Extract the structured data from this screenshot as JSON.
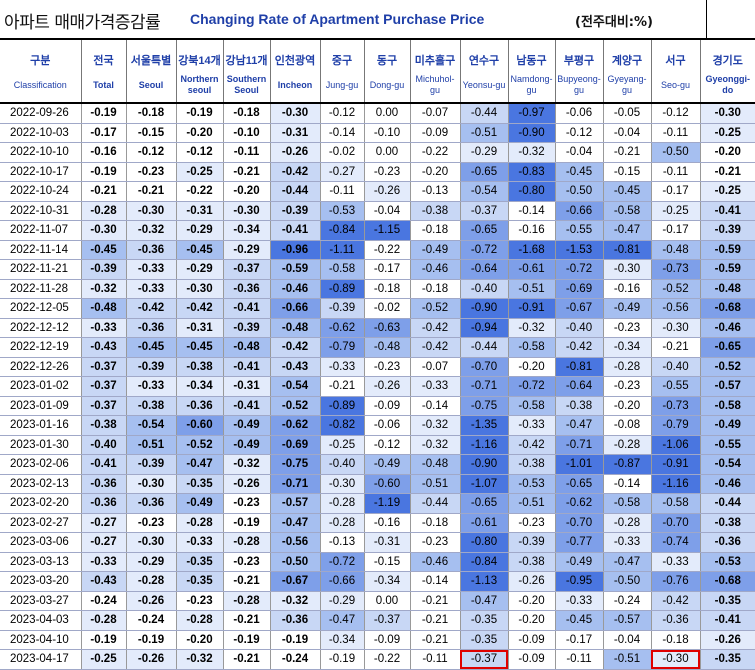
{
  "header": {
    "title_kr": "아파트 매매가격증감률",
    "title_en": "Changing Rate of Apartment Purchase Price",
    "unit": "(전주대비:%)"
  },
  "columns": [
    {
      "kr": "구분",
      "en": "Classification"
    },
    {
      "kr": "전국",
      "en": "Total"
    },
    {
      "kr": "서울특별",
      "en": "Seoul"
    },
    {
      "kr": "강북14개",
      "en": "Northern seoul"
    },
    {
      "kr": "강남11개",
      "en": "Southern Seoul"
    },
    {
      "kr": "인천광역",
      "en": "Incheon"
    },
    {
      "kr": "중구",
      "en": "Jung-gu"
    },
    {
      "kr": "동구",
      "en": "Dong-gu"
    },
    {
      "kr": "미추홀구",
      "en": "Michuhol-gu"
    },
    {
      "kr": "연수구",
      "en": "Yeonsu-gu"
    },
    {
      "kr": "남동구",
      "en": "Namdong-gu"
    },
    {
      "kr": "부평구",
      "en": "Bupyeong-gu"
    },
    {
      "kr": "계양구",
      "en": "Gyeyang-gu"
    },
    {
      "kr": "서구",
      "en": "Seo-gu"
    },
    {
      "kr": "경기도",
      "en": "Gyeonggi-do"
    }
  ],
  "rows": [
    {
      "date": "2022-09-26",
      "values": [
        "-0.19",
        "-0.18",
        "-0.19",
        "-0.18",
        "-0.30",
        "-0.12",
        "0.00",
        "-0.07",
        "-0.44",
        "-0.97",
        "-0.06",
        "-0.05",
        "-0.12",
        "-0.30"
      ]
    },
    {
      "date": "2022-10-03",
      "values": [
        "-0.17",
        "-0.15",
        "-0.20",
        "-0.10",
        "-0.31",
        "-0.14",
        "-0.10",
        "-0.09",
        "-0.51",
        "-0.90",
        "-0.12",
        "-0.04",
        "-0.11",
        "-0.25"
      ]
    },
    {
      "date": "2022-10-10",
      "values": [
        "-0.16",
        "-0.12",
        "-0.12",
        "-0.11",
        "-0.26",
        "-0.02",
        "0.00",
        "-0.22",
        "-0.29",
        "-0.32",
        "-0.04",
        "-0.21",
        "-0.50",
        "-0.20"
      ]
    },
    {
      "date": "2022-10-17",
      "values": [
        "-0.19",
        "-0.23",
        "-0.25",
        "-0.21",
        "-0.42",
        "-0.27",
        "-0.23",
        "-0.20",
        "-0.65",
        "-0.83",
        "-0.45",
        "-0.15",
        "-0.11",
        "-0.21"
      ]
    },
    {
      "date": "2022-10-24",
      "values": [
        "-0.21",
        "-0.21",
        "-0.22",
        "-0.20",
        "-0.44",
        "-0.11",
        "-0.26",
        "-0.13",
        "-0.54",
        "-0.80",
        "-0.50",
        "-0.45",
        "-0.17",
        "-0.25"
      ]
    },
    {
      "date": "2022-10-31",
      "values": [
        "-0.28",
        "-0.30",
        "-0.31",
        "-0.30",
        "-0.39",
        "-0.53",
        "-0.04",
        "-0.38",
        "-0.37",
        "-0.14",
        "-0.66",
        "-0.58",
        "-0.25",
        "-0.41"
      ]
    },
    {
      "date": "2022-11-07",
      "values": [
        "-0.30",
        "-0.32",
        "-0.29",
        "-0.34",
        "-0.41",
        "-0.84",
        "-1.15",
        "-0.18",
        "-0.65",
        "-0.16",
        "-0.55",
        "-0.47",
        "-0.17",
        "-0.39"
      ]
    },
    {
      "date": "2022-11-14",
      "values": [
        "-0.45",
        "-0.36",
        "-0.45",
        "-0.29",
        "-0.96",
        "-1.11",
        "-0.22",
        "-0.49",
        "-0.72",
        "-1.68",
        "-1.53",
        "-0.81",
        "-0.48",
        "-0.59"
      ]
    },
    {
      "date": "2022-11-21",
      "values": [
        "-0.39",
        "-0.33",
        "-0.29",
        "-0.37",
        "-0.59",
        "-0.58",
        "-0.17",
        "-0.46",
        "-0.64",
        "-0.61",
        "-0.72",
        "-0.30",
        "-0.73",
        "-0.59"
      ]
    },
    {
      "date": "2022-11-28",
      "values": [
        "-0.32",
        "-0.33",
        "-0.30",
        "-0.36",
        "-0.46",
        "-0.89",
        "-0.18",
        "-0.18",
        "-0.40",
        "-0.51",
        "-0.69",
        "-0.16",
        "-0.52",
        "-0.48"
      ]
    },
    {
      "date": "2022-12-05",
      "values": [
        "-0.48",
        "-0.42",
        "-0.42",
        "-0.41",
        "-0.66",
        "-0.39",
        "-0.02",
        "-0.52",
        "-0.90",
        "-0.91",
        "-0.67",
        "-0.49",
        "-0.56",
        "-0.68"
      ]
    },
    {
      "date": "2022-12-12",
      "values": [
        "-0.33",
        "-0.36",
        "-0.31",
        "-0.39",
        "-0.48",
        "-0.62",
        "-0.63",
        "-0.42",
        "-0.94",
        "-0.32",
        "-0.40",
        "-0.23",
        "-0.30",
        "-0.46"
      ]
    },
    {
      "date": "2022-12-19",
      "values": [
        "-0.43",
        "-0.45",
        "-0.45",
        "-0.48",
        "-0.42",
        "-0.79",
        "-0.48",
        "-0.42",
        "-0.44",
        "-0.58",
        "-0.42",
        "-0.34",
        "-0.21",
        "-0.65"
      ]
    },
    {
      "date": "2022-12-26",
      "values": [
        "-0.37",
        "-0.39",
        "-0.38",
        "-0.41",
        "-0.43",
        "-0.33",
        "-0.23",
        "-0.07",
        "-0.70",
        "-0.20",
        "-0.81",
        "-0.28",
        "-0.40",
        "-0.52"
      ]
    },
    {
      "date": "2023-01-02",
      "values": [
        "-0.37",
        "-0.33",
        "-0.34",
        "-0.31",
        "-0.54",
        "-0.21",
        "-0.26",
        "-0.33",
        "-0.71",
        "-0.72",
        "-0.64",
        "-0.23",
        "-0.55",
        "-0.57"
      ]
    },
    {
      "date": "2023-01-09",
      "values": [
        "-0.37",
        "-0.38",
        "-0.36",
        "-0.41",
        "-0.52",
        "-0.89",
        "-0.09",
        "-0.14",
        "-0.75",
        "-0.58",
        "-0.38",
        "-0.20",
        "-0.73",
        "-0.58"
      ]
    },
    {
      "date": "2023-01-16",
      "values": [
        "-0.38",
        "-0.54",
        "-0.60",
        "-0.49",
        "-0.62",
        "-0.82",
        "-0.06",
        "-0.32",
        "-1.35",
        "-0.33",
        "-0.47",
        "-0.08",
        "-0.79",
        "-0.49"
      ]
    },
    {
      "date": "2023-01-30",
      "values": [
        "-0.40",
        "-0.51",
        "-0.52",
        "-0.49",
        "-0.69",
        "-0.25",
        "-0.12",
        "-0.32",
        "-1.16",
        "-0.42",
        "-0.71",
        "-0.28",
        "-1.06",
        "-0.55"
      ]
    },
    {
      "date": "2023-02-06",
      "values": [
        "-0.41",
        "-0.39",
        "-0.47",
        "-0.32",
        "-0.75",
        "-0.40",
        "-0.49",
        "-0.48",
        "-0.90",
        "-0.38",
        "-1.01",
        "-0.87",
        "-0.91",
        "-0.54"
      ]
    },
    {
      "date": "2023-02-13",
      "values": [
        "-0.36",
        "-0.30",
        "-0.35",
        "-0.26",
        "-0.71",
        "-0.30",
        "-0.60",
        "-0.51",
        "-1.07",
        "-0.53",
        "-0.65",
        "-0.14",
        "-1.16",
        "-0.46"
      ]
    },
    {
      "date": "2023-02-20",
      "values": [
        "-0.36",
        "-0.36",
        "-0.49",
        "-0.23",
        "-0.57",
        "-0.28",
        "-1.19",
        "-0.44",
        "-0.65",
        "-0.51",
        "-0.62",
        "-0.58",
        "-0.58",
        "-0.44"
      ]
    },
    {
      "date": "2023-02-27",
      "values": [
        "-0.27",
        "-0.23",
        "-0.28",
        "-0.19",
        "-0.47",
        "-0.28",
        "-0.16",
        "-0.18",
        "-0.61",
        "-0.23",
        "-0.70",
        "-0.28",
        "-0.70",
        "-0.38"
      ]
    },
    {
      "date": "2023-03-06",
      "values": [
        "-0.27",
        "-0.30",
        "-0.33",
        "-0.28",
        "-0.56",
        "-0.13",
        "-0.31",
        "-0.23",
        "-0.80",
        "-0.39",
        "-0.77",
        "-0.33",
        "-0.74",
        "-0.36"
      ]
    },
    {
      "date": "2023-03-13",
      "values": [
        "-0.33",
        "-0.29",
        "-0.35",
        "-0.23",
        "-0.50",
        "-0.72",
        "-0.15",
        "-0.46",
        "-0.84",
        "-0.38",
        "-0.49",
        "-0.47",
        "-0.33",
        "-0.53"
      ]
    },
    {
      "date": "2023-03-20",
      "values": [
        "-0.43",
        "-0.28",
        "-0.35",
        "-0.21",
        "-0.67",
        "-0.66",
        "-0.34",
        "-0.14",
        "-1.13",
        "-0.26",
        "-0.95",
        "-0.50",
        "-0.76",
        "-0.68"
      ]
    },
    {
      "date": "2023-03-27",
      "values": [
        "-0.24",
        "-0.26",
        "-0.23",
        "-0.28",
        "-0.32",
        "-0.29",
        "0.00",
        "-0.21",
        "-0.47",
        "-0.20",
        "-0.33",
        "-0.24",
        "-0.42",
        "-0.35"
      ]
    },
    {
      "date": "2023-04-03",
      "values": [
        "-0.28",
        "-0.24",
        "-0.28",
        "-0.21",
        "-0.36",
        "-0.47",
        "-0.37",
        "-0.21",
        "-0.35",
        "-0.20",
        "-0.45",
        "-0.57",
        "-0.36",
        "-0.41"
      ]
    },
    {
      "date": "2023-04-10",
      "values": [
        "-0.19",
        "-0.19",
        "-0.20",
        "-0.19",
        "-0.19",
        "-0.34",
        "-0.09",
        "-0.21",
        "-0.35",
        "-0.09",
        "-0.17",
        "-0.04",
        "-0.18",
        "-0.26"
      ]
    },
    {
      "date": "2023-04-17",
      "values": [
        "-0.25",
        "-0.26",
        "-0.32",
        "-0.21",
        "-0.24",
        "-0.19",
        "-0.22",
        "-0.11",
        "-0.37",
        "-0.09",
        "-0.11",
        "-0.51",
        "-0.30",
        "-0.35"
      ]
    }
  ],
  "highlight": {
    "row": 28,
    "cols": [
      8,
      12
    ],
    "color": "#e00000"
  },
  "colors": {
    "title_blue": "#1f3fa8",
    "shade_levels": [
      "#ffffff",
      "#e3ebfb",
      "#c8d7f5",
      "#a6bff0",
      "#7e9fe9",
      "#4a76e0"
    ]
  }
}
